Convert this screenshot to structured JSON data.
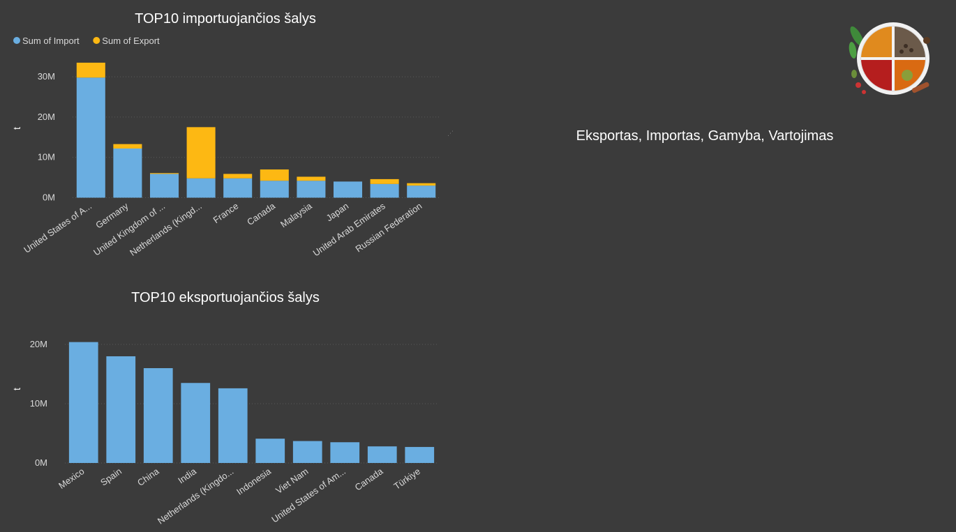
{
  "page": {
    "heading": "Eksportas, Importas, Gamyba, Vartojimas",
    "logo": "spice-bowl-image"
  },
  "colors": {
    "background": "#3b3b3b",
    "import": "#6aaee1",
    "export": "#fdb813"
  },
  "chart_data": [
    {
      "type": "bar",
      "stacked": true,
      "title": "TOP10 importuojančios šalys",
      "legend": "top-left",
      "ylabel": "t",
      "ylim": [
        0,
        34000000
      ],
      "yticks": [
        {
          "value": 0,
          "label": "0M"
        },
        {
          "value": 10000000,
          "label": "10M"
        },
        {
          "value": 20000000,
          "label": "20M"
        },
        {
          "value": 30000000,
          "label": "30M"
        }
      ],
      "grid": true,
      "categories": [
        "United States of A...",
        "Germany",
        "United Kingdom of ...",
        "Netherlands (Kingd...",
        "France",
        "Canada",
        "Malaysia",
        "Japan",
        "United Arab Emirates",
        "Russian Federation"
      ],
      "series": [
        {
          "name": "Sum of Import",
          "color": "#6aaee1",
          "values": [
            29800000,
            12200000,
            5900000,
            4800000,
            4800000,
            4200000,
            4200000,
            4000000,
            3400000,
            3000000
          ]
        },
        {
          "name": "Sum of Export",
          "color": "#fdb813",
          "values": [
            3700000,
            1100000,
            200000,
            12700000,
            1100000,
            2800000,
            1000000,
            0,
            1200000,
            600000
          ]
        }
      ]
    },
    {
      "type": "bar",
      "title": "TOP10 eksportuojančios šalys",
      "ylabel": "t",
      "ylim": [
        0,
        22000000
      ],
      "yticks": [
        {
          "value": 0,
          "label": "0M"
        },
        {
          "value": 10000000,
          "label": "10M"
        },
        {
          "value": 20000000,
          "label": "20M"
        }
      ],
      "grid": true,
      "categories": [
        "Mexico",
        "Spain",
        "China",
        "India",
        "Netherlands (Kingdo...",
        "Indonesia",
        "Viet Nam",
        "United States of Am...",
        "Canada",
        "Türkiye"
      ],
      "series": [
        {
          "color": "#6aaee1",
          "values": [
            20400000,
            18000000,
            16000000,
            13500000,
            12600000,
            4100000,
            3700000,
            3500000,
            2800000,
            2700000
          ]
        }
      ]
    }
  ]
}
